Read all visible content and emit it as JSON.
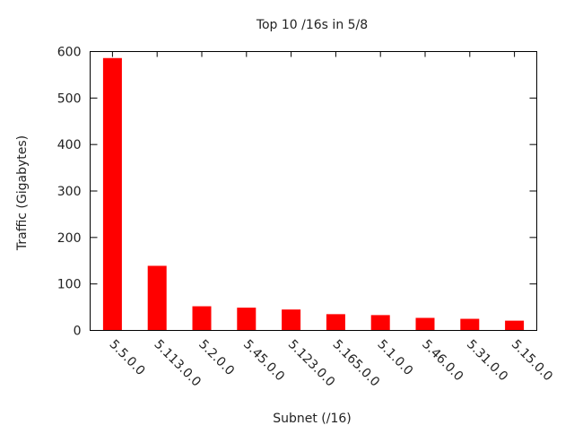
{
  "chart_data": {
    "type": "bar",
    "title": "Top 10 /16s in 5/8",
    "xlabel": "Subnet (/16)",
    "ylabel": "Traffic (Gigabytes)",
    "categories": [
      "5.5.0.0",
      "5.113.0.0",
      "5.2.0.0",
      "5.45.0.0",
      "5.123.0.0",
      "5.165.0.0",
      "5.1.0.0",
      "5.46.0.0",
      "5.31.0.0",
      "5.15.0.0"
    ],
    "values": [
      586,
      139,
      52,
      49,
      45,
      35,
      33,
      27,
      25,
      21
    ],
    "ylim": [
      0,
      600
    ],
    "yticks": [
      0,
      100,
      200,
      300,
      400,
      500,
      600
    ],
    "grid": false,
    "legend": "none",
    "bar_color": "#ff0000"
  }
}
